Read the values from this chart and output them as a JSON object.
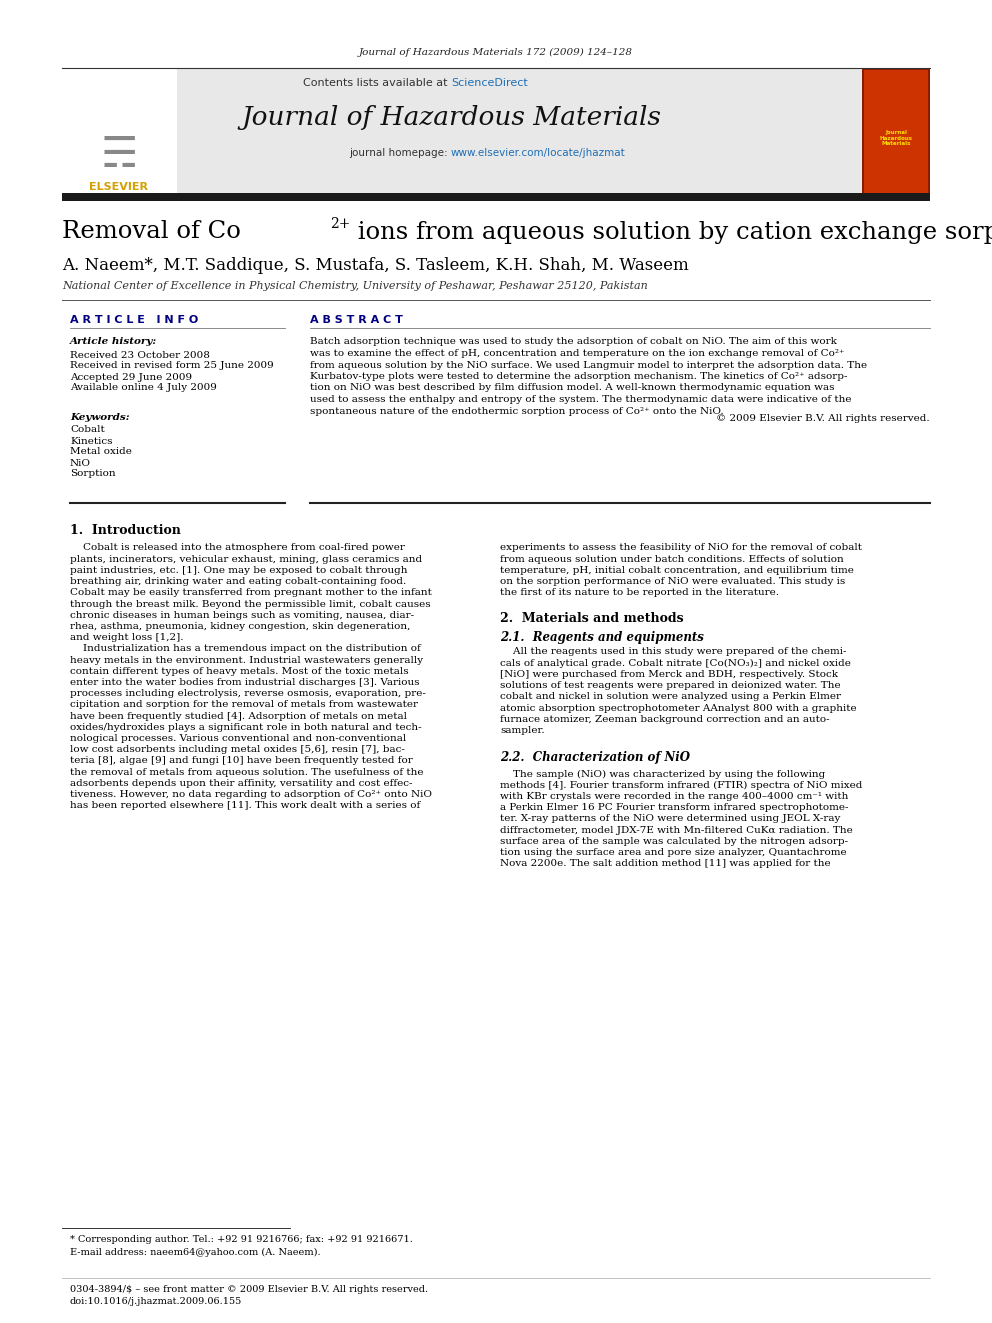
{
  "page_width": 9.92,
  "page_height": 13.23,
  "bg_color": "#ffffff",
  "journal_citation": "Journal of Hazardous Materials 172 (2009) 124–128",
  "header_bg": "#e8e8e8",
  "contents_text": "Contents lists available at ScienceDirect",
  "journal_name": "Journal of Hazardous Materials",
  "journal_url": "journal homepage: www.elsevier.com/locate/jhazmat",
  "dark_bar_color": "#1a1a1a",
  "article_title_line1": "Removal of Co",
  "article_title_superscript": "2+",
  "article_title_line2": " ions from aqueous solution by cation exchange sorption onto NiO",
  "authors": "A. Naeem*, M.T. Saddique, S. Mustafa, S. Tasleem, K.H. Shah, M. Waseem",
  "affiliation": "National Center of Excellence in Physical Chemistry, University of Peshawar, Peshawar 25120, Pakistan",
  "article_info_header": "A R T I C L E   I N F O",
  "abstract_header": "A B S T R A C T",
  "article_history_label": "Article history:",
  "received_date": "Received 23 October 2008",
  "revised_date": "Received in revised form 25 June 2009",
  "accepted_date": "Accepted 29 June 2009",
  "available_date": "Available online 4 July 2009",
  "keywords_label": "Keywords:",
  "keywords": [
    "Cobalt",
    "Kinetics",
    "Metal oxide",
    "NiO",
    "Sorption"
  ],
  "copyright": "© 2009 Elsevier B.V. All rights reserved.",
  "intro_heading": "1.  Introduction",
  "materials_heading": "2.  Materials and methods",
  "reagents_heading": "2.1.  Reagents and equipments",
  "char_heading": "2.2.  Characterization of NiO",
  "footnote_star": "* Corresponding author. Tel.: +92 91 9216766; fax: +92 91 9216671.",
  "footnote_email": "E-mail address: naeem64@yahoo.com (A. Naeem).",
  "bottom_text1": "0304-3894/$ – see front matter © 2009 Elsevier B.V. All rights reserved.",
  "bottom_text2": "doi:10.1016/j.jhazmat.2009.06.155",
  "sciencedirect_color": "#1f6eb5",
  "url_color": "#1f6eb5",
  "elsevier_color": "#d4a000",
  "heading_color": "#000080"
}
